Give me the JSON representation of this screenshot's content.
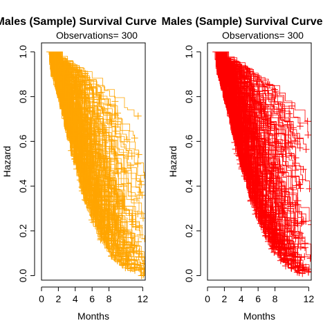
{
  "chart_data": [
    {
      "type": "scatter",
      "title": "Males (Sample) Survival Curve",
      "subtitle": "Observations= 300",
      "xlabel": "Months",
      "ylabel": "Hazard",
      "xlim": [
        0,
        12.3
      ],
      "ylim": [
        -0.02,
        1.04
      ],
      "xticks": [
        "0",
        "2",
        "4",
        "6",
        "8",
        "12"
      ],
      "xtick_values": [
        0,
        2,
        4,
        6,
        8,
        12
      ],
      "yticks": [
        "0.0",
        "0.2",
        "0.4",
        "0.6",
        "0.8",
        "1.0"
      ],
      "ytick_values": [
        0,
        0.2,
        0.4,
        0.6,
        0.8,
        1.0
      ],
      "marker": "plus",
      "color": "#FFA500",
      "grid": false,
      "n_curves": 300,
      "seed": 7
    },
    {
      "type": "scatter",
      "title": "Males (Sample) Survival Curve",
      "subtitle": "Observations= 300",
      "xlabel": "Months",
      "ylabel": "Hazard",
      "xlim": [
        0,
        12.3
      ],
      "ylim": [
        -0.02,
        1.04
      ],
      "xticks": [
        "0",
        "2",
        "4",
        "6",
        "8",
        "12"
      ],
      "xtick_values": [
        0,
        2,
        4,
        6,
        8,
        12
      ],
      "yticks": [
        "0.0",
        "0.2",
        "0.4",
        "0.6",
        "0.8",
        "1.0"
      ],
      "ytick_values": [
        0,
        0.2,
        0.4,
        0.6,
        0.8,
        1.0
      ],
      "marker": "plus",
      "color": "#FF0000",
      "grid": false,
      "n_curves": 300,
      "seed": 19
    }
  ]
}
